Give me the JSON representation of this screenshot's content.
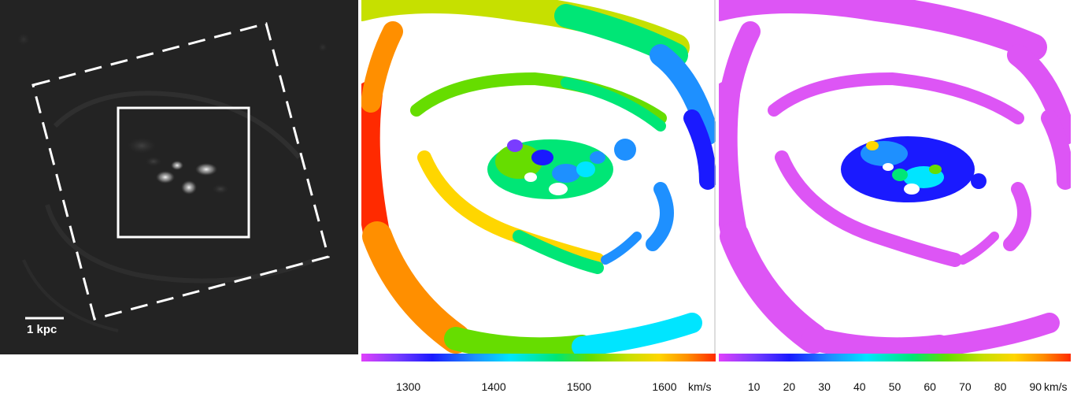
{
  "panel1": {
    "scale_bar_label": "1 kpc",
    "background_color": "#232323"
  },
  "panel2": {
    "colorbar": {
      "unit": "km/s",
      "ticks": [
        "1300",
        "1400",
        "1500",
        "1600"
      ],
      "tick_values": [
        1300,
        1400,
        1500,
        1600
      ],
      "range": [
        1245,
        1660
      ]
    }
  },
  "panel3": {
    "colorbar": {
      "unit": "km/s",
      "ticks": [
        "10",
        "20",
        "30",
        "40",
        "50",
        "60",
        "70",
        "80",
        "90"
      ],
      "tick_values": [
        10,
        20,
        30,
        40,
        50,
        60,
        70,
        80,
        90
      ],
      "range": [
        0,
        100
      ]
    }
  },
  "colors": {
    "rainbow": [
      "#e040fb",
      "#7a3cff",
      "#1a1aff",
      "#1e90ff",
      "#00e5ff",
      "#00e676",
      "#66dd00",
      "#c6e000",
      "#ffd600",
      "#ff8f00",
      "#ff2a00"
    ]
  }
}
